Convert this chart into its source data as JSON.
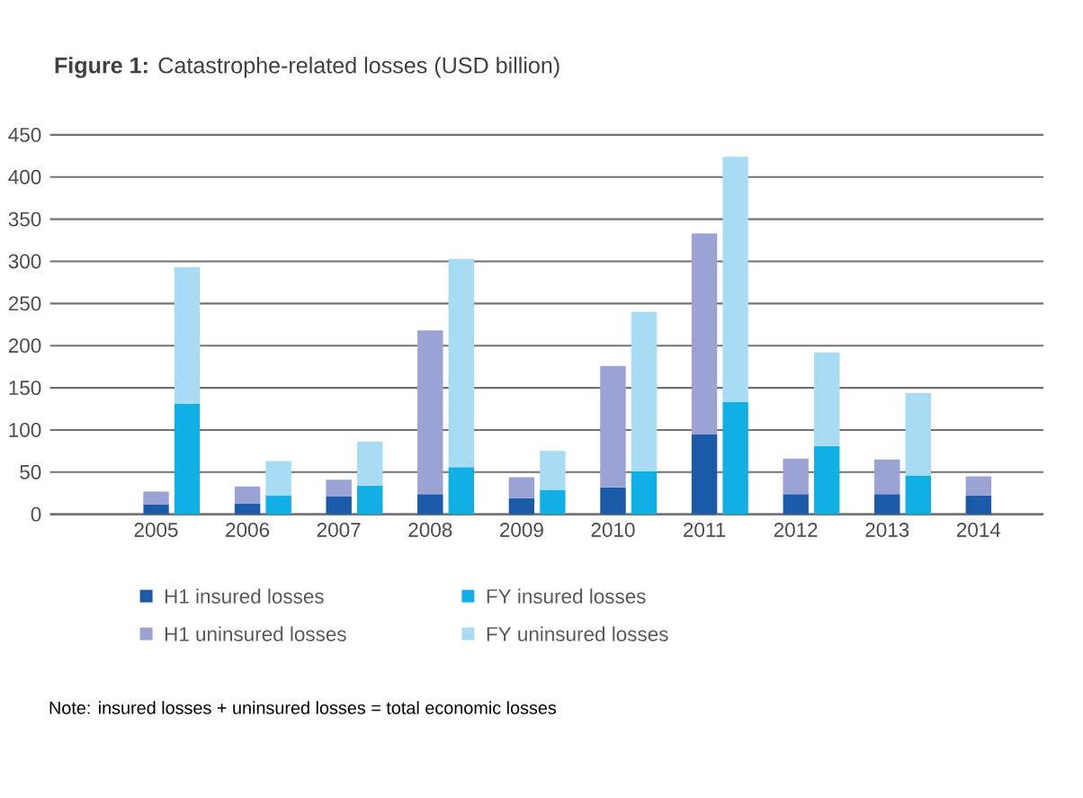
{
  "chart_data": {
    "type": "bar",
    "stacked": true,
    "title": "**Figure 1:** Catastrophe-related losses (USD billion)",
    "categories": [
      "2005",
      null,
      "2006",
      null,
      "2007",
      null,
      "2008",
      null,
      "2009",
      null,
      "2010",
      null,
      "2011",
      null,
      "2012",
      null,
      "2013",
      null,
      "2014",
      null
    ],
    "series": [
      {
        "name": "H1 insured losses",
        "color": "#1a5aa8",
        "values": [
          12,
          null,
          13,
          null,
          21,
          null,
          24,
          null,
          19,
          null,
          32,
          null,
          95,
          null,
          24,
          null,
          24,
          null,
          22,
          null
        ]
      },
      {
        "name": "H1 uninsured losses",
        "color": "#9aa3d4",
        "values": [
          15,
          null,
          20,
          null,
          20,
          null,
          194,
          null,
          25,
          null,
          144,
          null,
          238,
          null,
          42,
          null,
          41,
          null,
          23,
          null
        ]
      },
      {
        "name": "FY insured losses",
        "color": "#10b0e6",
        "values": [
          null,
          131,
          null,
          22,
          null,
          34,
          null,
          56,
          null,
          29,
          null,
          51,
          null,
          133,
          null,
          81,
          null,
          46,
          null,
          null
        ]
      },
      {
        "name": "FY uninsured losses",
        "color": "#a8dcf5",
        "values": [
          null,
          162,
          null,
          41,
          null,
          52,
          null,
          247,
          null,
          46,
          null,
          189,
          null,
          291,
          null,
          111,
          null,
          98,
          null,
          null
        ]
      }
    ],
    "ylim": [
      0,
      450
    ],
    "yticks": [
      0,
      50,
      100,
      150,
      200,
      250,
      300,
      350,
      400,
      450
    ],
    "grid": "y",
    "legend": "bottom",
    "annotations": [
      "Note: insured losses + uninsured losses = total economic losses"
    ]
  }
}
